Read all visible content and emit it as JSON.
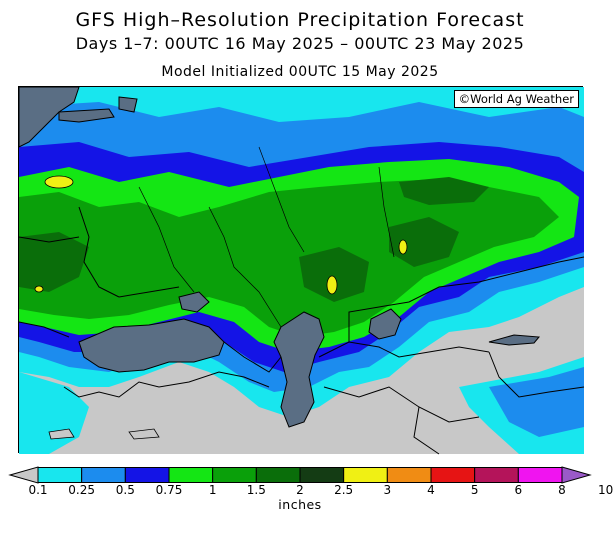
{
  "title": "GFS High–Resolution Precipitation Forecast",
  "subtitle": "Days 1–7: 00UTC 16 May 2025 – 00UTC 23 May 2025",
  "initialized": "Model Initialized 00UTC 15 May 2025",
  "credit": "©World Ag Weather",
  "legend": {
    "units": "inches",
    "colors": [
      "#c8c8c8",
      "#18e6ee",
      "#1c8cee",
      "#1414e6",
      "#14e614",
      "#0aa00a",
      "#0a6e0a",
      "#143c14",
      "#f0f014",
      "#f08c14",
      "#e61414",
      "#b4145a",
      "#f014f0",
      "#9a5ac8"
    ],
    "ticks": [
      "0.1",
      "0.25",
      "0.5",
      "0.75",
      "1",
      "1.5",
      "2",
      "2.5",
      "3",
      "4",
      "5",
      "6",
      "8",
      "10"
    ]
  },
  "map_colors": {
    "land_dry": "#c8c8c8",
    "water": "#5a6e84",
    "boundary": "#000000"
  }
}
